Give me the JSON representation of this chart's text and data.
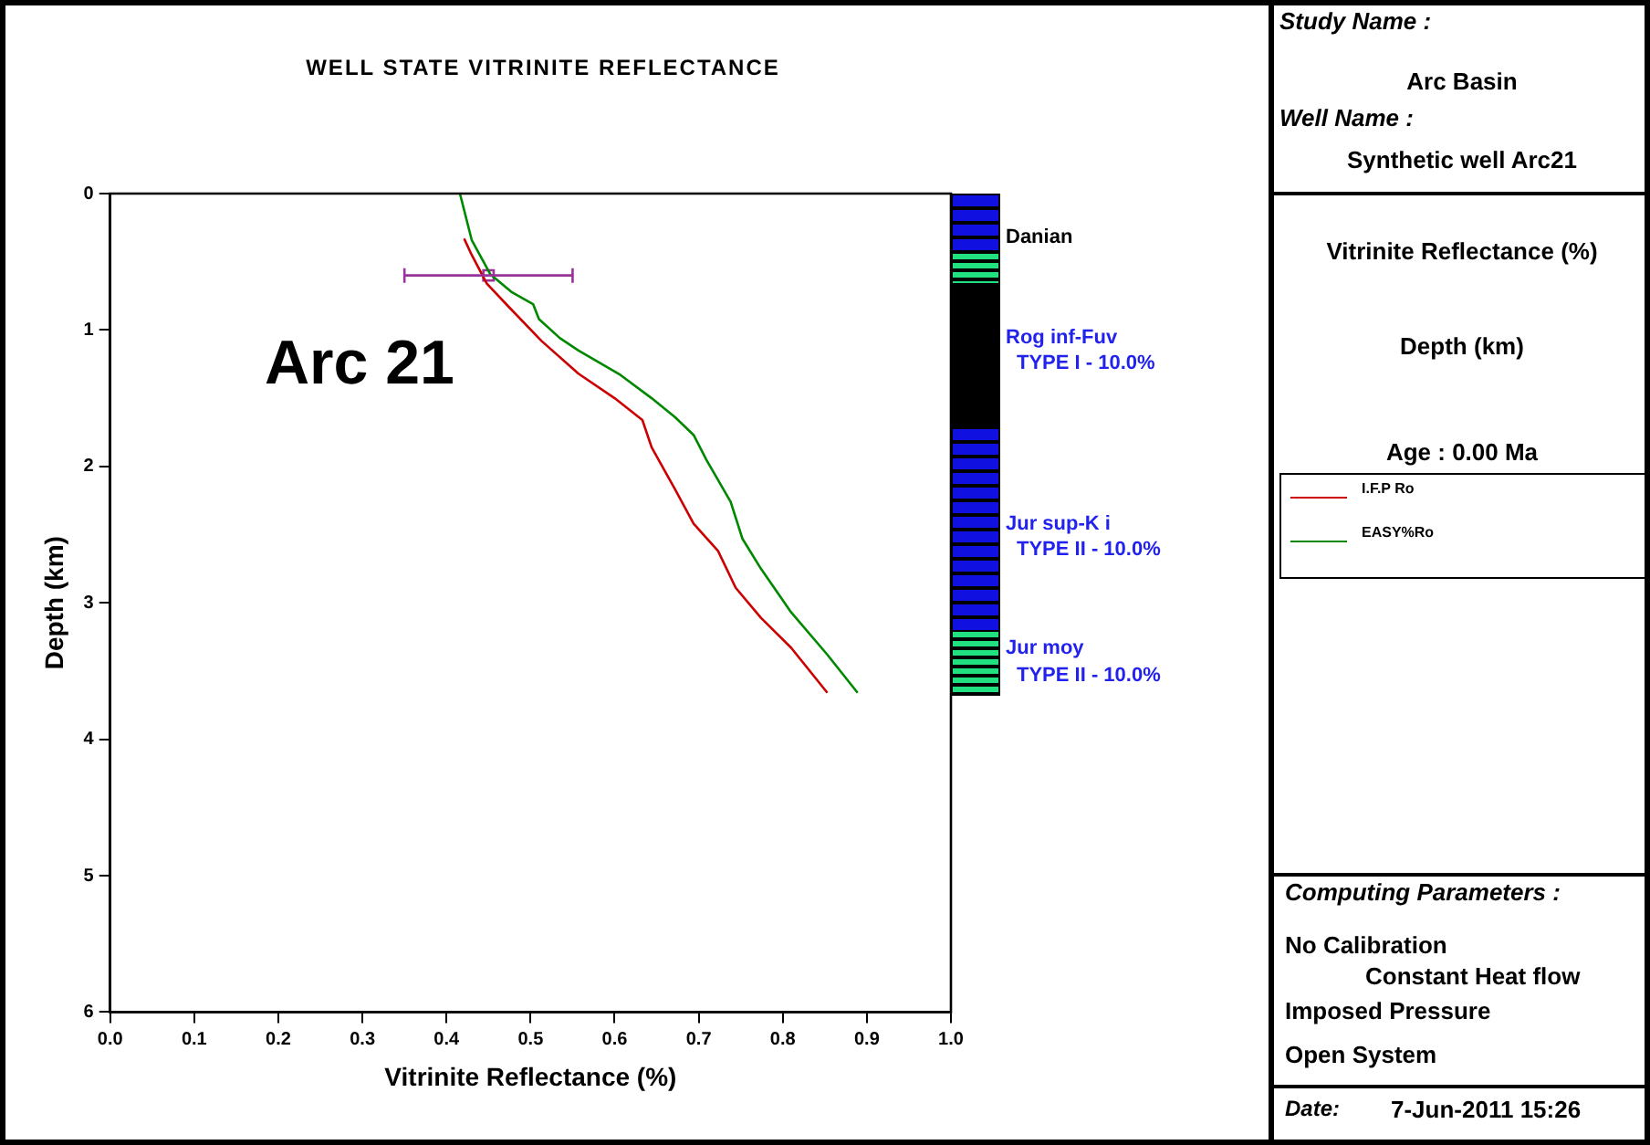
{
  "chart_data": {
    "type": "line",
    "title": "WELL STATE VITRINITE REFLECTANCE",
    "xlabel": "Vitrinite Reflectance (%)",
    "ylabel": "Depth (km)",
    "xlim": [
      0,
      1
    ],
    "xticks": [
      {
        "value": 0,
        "label": "0.0"
      },
      {
        "value": 0.1,
        "label": "0.1"
      },
      {
        "value": 0.2,
        "label": "0.2"
      },
      {
        "value": 0.3,
        "label": "0.3"
      },
      {
        "value": 0.4,
        "label": "0.4"
      },
      {
        "value": 0.5,
        "label": "0.5"
      },
      {
        "value": 0.6,
        "label": "0.6"
      },
      {
        "value": 0.7,
        "label": "0.7"
      },
      {
        "value": 0.8,
        "label": "0.8"
      },
      {
        "value": 0.9,
        "label": "0.9"
      },
      {
        "value": 1,
        "label": "1.0"
      }
    ],
    "ylim": [
      6,
      0
    ],
    "yticks": [
      0,
      1,
      2,
      3,
      4,
      5,
      6
    ],
    "grid": false,
    "legend": "right",
    "series": [
      {
        "name": "I.F.P Ro",
        "color": "#cc0000",
        "x": [
          0.421,
          0.43,
          0.448,
          0.474,
          0.513,
          0.557,
          0.6,
          0.633,
          0.644,
          0.672,
          0.694,
          0.723,
          0.744,
          0.774,
          0.81,
          0.853
        ],
        "values": [
          0.33,
          0.45,
          0.66,
          0.83,
          1.08,
          1.32,
          1.5,
          1.66,
          1.86,
          2.17,
          2.42,
          2.62,
          2.89,
          3.11,
          3.33,
          3.66
        ]
      },
      {
        "name": "EASY%Ro",
        "color": "#008800",
        "x": [
          0.416,
          0.43,
          0.452,
          0.477,
          0.503,
          0.51,
          0.535,
          0.557,
          0.607,
          0.644,
          0.672,
          0.694,
          0.709,
          0.738,
          0.752,
          0.774,
          0.81,
          0.853,
          0.889
        ],
        "values": [
          0,
          0.34,
          0.59,
          0.72,
          0.81,
          0.92,
          1.06,
          1.15,
          1.33,
          1.5,
          1.64,
          1.77,
          1.95,
          2.26,
          2.53,
          2.75,
          3.07,
          3.38,
          3.66
        ]
      },
      {
        "type": "scatter",
        "color": "#993399",
        "marker": "square",
        "x": [
          0.45
        ],
        "values": [
          0.6
        ],
        "xerrors": [
          0.1
        ]
      }
    ],
    "annotations": [
      "Arc 21",
      "Danian",
      "Rog inf-Fuv",
      "TYPE I - 10.0%",
      "Jur sup-K i",
      "TYPE II - 10.0%",
      "Jur moy",
      "TYPE II - 10.0%",
      "Study Name :",
      "Arc Basin",
      "Well Name :",
      "Synthetic well Arc21",
      "Vitrinite Reflectance (%)",
      "Depth (km)",
      "Age : 0.00 Ma",
      "Computing Parameters :",
      "No Calibration",
      "Constant Heat flow",
      "Imposed Pressure",
      "Open System",
      "Date:",
      "7-Jun-2011 15:26"
    ]
  }
}
